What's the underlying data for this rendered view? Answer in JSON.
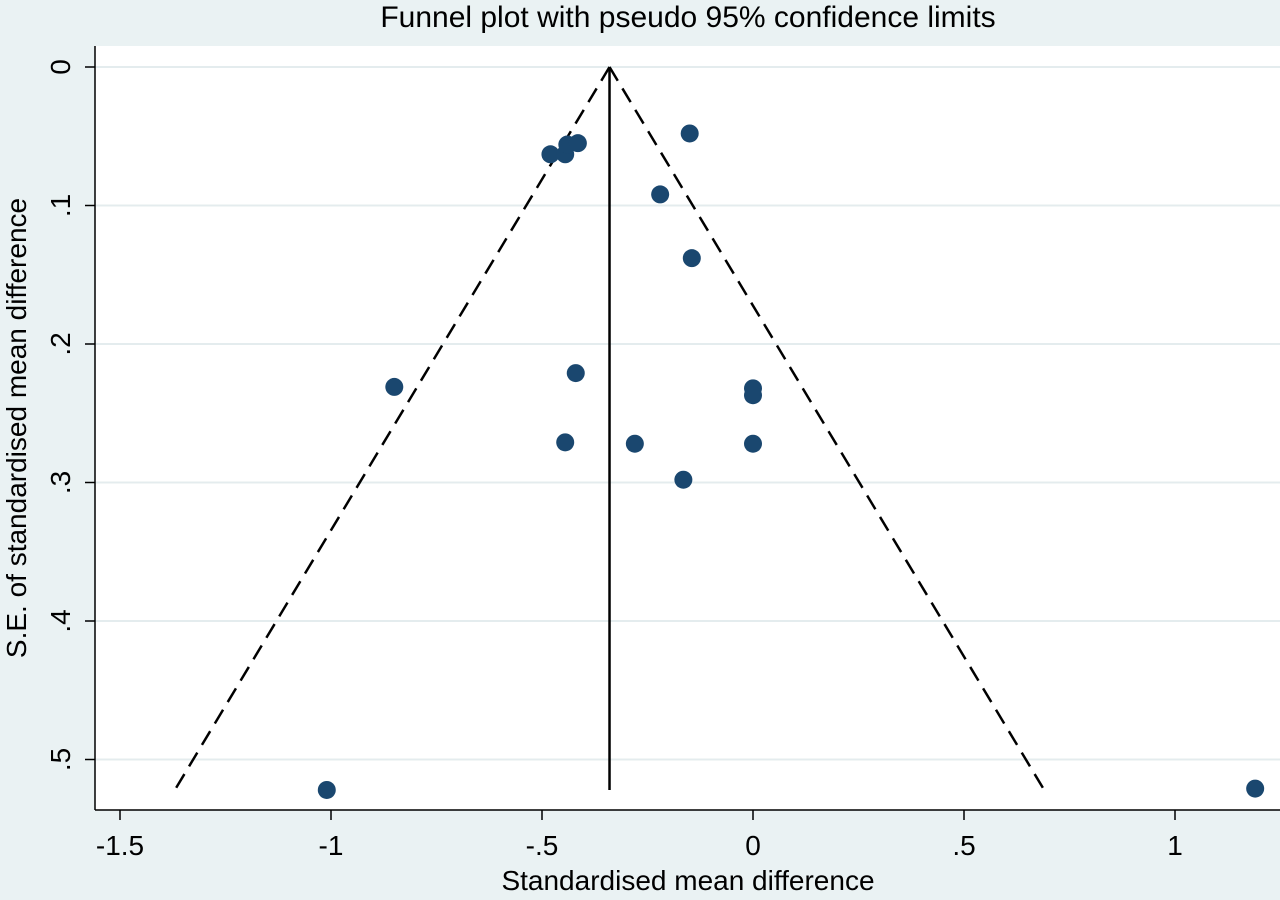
{
  "chart_data": {
    "type": "scatter",
    "title": "Funnel plot with pseudo 95% confidence limits",
    "xlabel": "Standardised mean difference",
    "ylabel": "S.E. of standardised mean difference",
    "xlim": [
      -1.5,
      1.2
    ],
    "ylim": [
      0,
      0.525
    ],
    "y_reversed": true,
    "grid": true,
    "x_ticks": [
      {
        "value": -1.5,
        "label": "-1.5"
      },
      {
        "value": -1,
        "label": "-1"
      },
      {
        "value": -0.5,
        "label": "-.5"
      },
      {
        "value": 0,
        "label": "0"
      },
      {
        "value": 0.5,
        "label": ".5"
      },
      {
        "value": 1,
        "label": "1"
      }
    ],
    "y_ticks": [
      {
        "value": 0,
        "label": "0"
      },
      {
        "value": 0.1,
        "label": ".1"
      },
      {
        "value": 0.2,
        "label": ".2"
      },
      {
        "value": 0.3,
        "label": ".3"
      },
      {
        "value": 0.4,
        "label": ".4"
      },
      {
        "value": 0.5,
        "label": ".5"
      }
    ],
    "pooled_estimate": -0.34,
    "funnel_limits": {
      "apex": [
        -0.34,
        0
      ],
      "left_bottom": [
        -1.37,
        0.522
      ],
      "right_bottom": [
        0.69,
        0.522
      ]
    },
    "points": [
      {
        "x": -0.48,
        "y": 0.063
      },
      {
        "x": -0.445,
        "y": 0.063
      },
      {
        "x": -0.44,
        "y": 0.056
      },
      {
        "x": -0.415,
        "y": 0.055
      },
      {
        "x": -0.15,
        "y": 0.048
      },
      {
        "x": -0.22,
        "y": 0.092
      },
      {
        "x": -0.145,
        "y": 0.138
      },
      {
        "x": -0.85,
        "y": 0.231
      },
      {
        "x": -0.42,
        "y": 0.221
      },
      {
        "x": 0,
        "y": 0.232
      },
      {
        "x": 0,
        "y": 0.237
      },
      {
        "x": -0.445,
        "y": 0.271
      },
      {
        "x": -0.28,
        "y": 0.272
      },
      {
        "x": 0,
        "y": 0.272
      },
      {
        "x": -0.165,
        "y": 0.298
      },
      {
        "x": -1.01,
        "y": 0.522
      },
      {
        "x": 1.19,
        "y": 0.521
      }
    ],
    "colors": {
      "background": "#eaf2f3",
      "plot_area": "#ffffff",
      "grid": "#e4ecee",
      "marker": "#1a476f",
      "line": "#000000"
    }
  }
}
